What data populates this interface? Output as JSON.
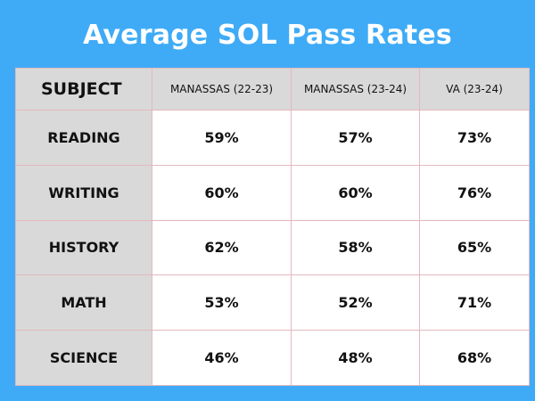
{
  "title": "Average SOL Pass Rates",
  "chart_data": {
    "type": "table",
    "title": "Average SOL Pass Rates",
    "columns": [
      "SUBJECT",
      "MANASSAS (22-23)",
      "MANASSAS (23-24)",
      "VA (23-24)"
    ],
    "rows": [
      {
        "subject": "READING",
        "values": [
          "59%",
          "57%",
          "73%"
        ]
      },
      {
        "subject": "WRITING",
        "values": [
          "60%",
          "60%",
          "76%"
        ]
      },
      {
        "subject": "HISTORY",
        "values": [
          "62%",
          "58%",
          "65%"
        ]
      },
      {
        "subject": "MATH",
        "values": [
          "53%",
          "52%",
          "71%"
        ]
      },
      {
        "subject": "SCIENCE",
        "values": [
          "46%",
          "48%",
          "68%"
        ]
      }
    ]
  },
  "colors": {
    "background": "#3fabf6",
    "header_fill": "#d9d9d9",
    "cell_fill": "#ffffff",
    "grid_line": "#e3b9bd"
  }
}
